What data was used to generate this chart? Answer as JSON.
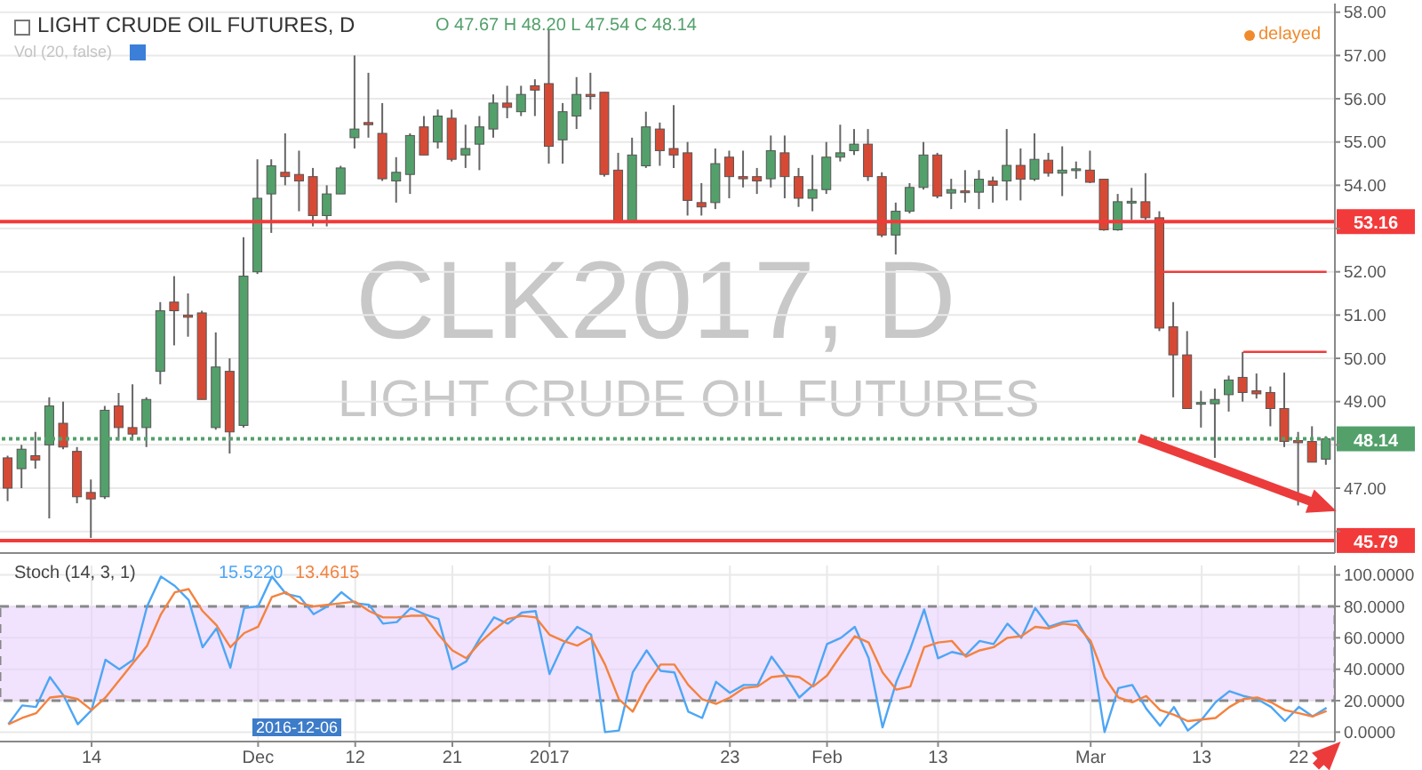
{
  "chart_data": [
    {
      "type": "candlestick",
      "title": "LIGHT CRUDE OIL FUTURES, D",
      "annotations": [
        "O 47.67 H 48.20 L 47.54 C 48.14",
        "Vol (20, false)",
        "delayed",
        "CLK2017, D",
        "LIGHT CRUDE OIL FUTURES"
      ],
      "categories": [
        null,
        null,
        null,
        null,
        null,
        null,
        null,
        null,
        null,
        null,
        null,
        null,
        null,
        null,
        null,
        null,
        null,
        null,
        null,
        null,
        null,
        null,
        null,
        null,
        null,
        null,
        null,
        null,
        null,
        null,
        null,
        null,
        null,
        null,
        null,
        null,
        null,
        null,
        null,
        null,
        null,
        null,
        null,
        null,
        null,
        null,
        null,
        null,
        null,
        null,
        null,
        null,
        null,
        null,
        null,
        null,
        null,
        null,
        null,
        null,
        null,
        null,
        null,
        null,
        null,
        null,
        null,
        null,
        null,
        null,
        null,
        null,
        null,
        null,
        null,
        null,
        null,
        null,
        null,
        null,
        null,
        null,
        null,
        null,
        null,
        null,
        null,
        null,
        null,
        null,
        null,
        null,
        null,
        null,
        null,
        null
      ],
      "ohlc": [
        [
          47.7,
          47.75,
          46.7,
          47.0
        ],
        [
          47.45,
          48.0,
          47.0,
          47.9
        ],
        [
          47.75,
          48.3,
          47.45,
          47.65
        ],
        [
          48.0,
          49.1,
          46.3,
          48.9
        ],
        [
          48.5,
          49.0,
          47.9,
          47.95
        ],
        [
          47.85,
          47.95,
          46.65,
          46.8
        ],
        [
          46.9,
          47.2,
          45.85,
          46.75
        ],
        [
          46.8,
          48.9,
          46.75,
          48.8
        ],
        [
          48.9,
          49.2,
          48.1,
          48.4
        ],
        [
          48.4,
          49.4,
          48.1,
          48.25
        ],
        [
          48.4,
          49.1,
          47.95,
          49.05
        ],
        [
          49.7,
          51.3,
          49.4,
          51.1
        ],
        [
          51.3,
          51.9,
          50.3,
          51.1
        ],
        [
          51.0,
          51.5,
          50.5,
          50.95
        ],
        [
          51.05,
          51.1,
          49.05,
          49.05
        ],
        [
          48.4,
          50.6,
          48.35,
          49.8
        ],
        [
          49.7,
          50.0,
          47.8,
          48.3
        ],
        [
          48.45,
          52.8,
          48.4,
          51.9
        ],
        [
          52.0,
          54.6,
          51.95,
          53.7
        ],
        [
          53.8,
          54.6,
          52.9,
          54.45
        ],
        [
          54.3,
          55.2,
          54.0,
          54.2
        ],
        [
          54.25,
          54.8,
          53.4,
          54.1
        ],
        [
          54.2,
          54.4,
          53.05,
          53.3
        ],
        [
          53.3,
          54.0,
          53.05,
          53.8
        ],
        [
          53.8,
          54.45,
          53.8,
          54.4
        ],
        [
          55.1,
          57.0,
          54.85,
          55.3
        ],
        [
          55.45,
          56.6,
          55.1,
          55.4
        ],
        [
          55.2,
          55.9,
          54.1,
          54.15
        ],
        [
          54.1,
          54.65,
          53.6,
          54.3
        ],
        [
          54.25,
          55.2,
          53.8,
          55.15
        ],
        [
          55.35,
          55.6,
          54.7,
          54.7
        ],
        [
          55.0,
          55.75,
          54.85,
          55.6
        ],
        [
          55.55,
          55.75,
          54.55,
          54.6
        ],
        [
          54.7,
          55.4,
          54.4,
          54.85
        ],
        [
          54.95,
          55.6,
          54.35,
          55.35
        ],
        [
          55.3,
          56.1,
          55.1,
          55.9
        ],
        [
          55.9,
          56.3,
          55.55,
          55.8
        ],
        [
          55.7,
          56.3,
          55.6,
          56.1
        ],
        [
          56.3,
          56.45,
          55.6,
          56.2
        ],
        [
          56.35,
          57.6,
          54.5,
          54.9
        ],
        [
          55.05,
          55.9,
          54.5,
          55.7
        ],
        [
          55.6,
          56.5,
          55.3,
          56.1
        ],
        [
          56.1,
          56.6,
          55.75,
          56.05
        ],
        [
          56.15,
          56.15,
          54.2,
          54.25
        ],
        [
          54.35,
          54.75,
          53.15,
          53.16
        ],
        [
          53.16,
          55.1,
          53.15,
          54.7
        ],
        [
          54.45,
          55.7,
          54.4,
          55.35
        ],
        [
          55.3,
          55.45,
          54.45,
          54.8
        ],
        [
          54.85,
          55.85,
          54.4,
          54.7
        ],
        [
          54.75,
          55.0,
          53.3,
          53.65
        ],
        [
          53.6,
          54.05,
          53.3,
          53.5
        ],
        [
          53.6,
          54.85,
          53.45,
          54.5
        ],
        [
          54.65,
          54.8,
          53.7,
          54.2
        ],
        [
          54.2,
          54.8,
          53.95,
          54.15
        ],
        [
          54.2,
          54.4,
          53.8,
          54.1
        ],
        [
          54.15,
          55.15,
          53.95,
          54.8
        ],
        [
          54.75,
          55.15,
          53.7,
          54.2
        ],
        [
          54.2,
          54.4,
          53.5,
          53.7
        ],
        [
          53.7,
          54.7,
          53.4,
          53.9
        ],
        [
          53.9,
          55.0,
          53.8,
          54.65
        ],
        [
          54.65,
          55.4,
          54.55,
          54.75
        ],
        [
          54.8,
          55.3,
          54.7,
          54.95
        ],
        [
          54.95,
          55.3,
          54.1,
          54.2
        ],
        [
          54.2,
          54.3,
          52.8,
          52.85
        ],
        [
          52.85,
          53.6,
          52.4,
          53.4
        ],
        [
          53.4,
          54.05,
          53.35,
          53.95
        ],
        [
          53.95,
          55.0,
          53.9,
          54.7
        ],
        [
          54.7,
          54.75,
          53.7,
          53.75
        ],
        [
          53.82,
          54.15,
          53.45,
          53.9
        ],
        [
          53.87,
          54.35,
          53.6,
          53.83
        ],
        [
          53.84,
          54.35,
          53.45,
          54.14
        ],
        [
          54.1,
          54.2,
          53.6,
          54.0
        ],
        [
          54.1,
          55.3,
          53.65,
          54.46
        ],
        [
          54.46,
          54.85,
          53.65,
          54.14
        ],
        [
          54.14,
          55.2,
          54.1,
          54.6
        ],
        [
          54.58,
          54.75,
          54.2,
          54.28
        ],
        [
          54.28,
          54.9,
          53.75,
          54.35
        ],
        [
          54.35,
          54.55,
          54.15,
          54.38
        ],
        [
          54.35,
          54.8,
          54.05,
          54.07
        ],
        [
          54.14,
          54.15,
          52.95,
          52.97
        ],
        [
          52.97,
          53.8,
          52.95,
          53.62
        ],
        [
          53.6,
          53.94,
          53.2,
          53.63
        ],
        [
          53.62,
          54.28,
          53.2,
          53.25
        ],
        [
          53.25,
          53.4,
          50.63,
          50.7
        ],
        [
          50.73,
          51.3,
          49.1,
          50.08
        ],
        [
          50.08,
          50.63,
          48.84,
          48.84
        ],
        [
          48.95,
          49.25,
          48.4,
          48.98
        ],
        [
          48.95,
          49.3,
          47.7,
          49.05
        ],
        [
          49.16,
          49.6,
          48.77,
          49.5
        ],
        [
          49.56,
          50.15,
          49.0,
          49.21
        ],
        [
          49.25,
          49.65,
          49.07,
          49.18
        ],
        [
          49.21,
          49.35,
          48.43,
          48.84
        ],
        [
          48.84,
          49.67,
          47.95,
          48.08
        ],
        [
          48.1,
          48.3,
          46.6,
          48.05
        ],
        [
          48.08,
          48.43,
          47.6,
          47.6
        ],
        [
          47.67,
          48.2,
          47.54,
          48.14
        ]
      ],
      "colors": [
        "#d64a35",
        "#53a06b",
        "#d64a35",
        "#53a06b",
        "#d64a35",
        "#d64a35",
        "#d64a35",
        "#53a06b",
        "#d64a35",
        "#d64a35",
        "#53a06b",
        "#53a06b",
        "#d64a35",
        "#d64a35",
        "#d64a35",
        "#53a06b",
        "#d64a35",
        "#53a06b",
        "#53a06b",
        "#53a06b",
        "#d64a35",
        "#d64a35",
        "#d64a35",
        "#53a06b",
        "#53a06b",
        "#53a06b",
        "#d64a35",
        "#d64a35",
        "#53a06b",
        "#53a06b",
        "#d64a35",
        "#53a06b",
        "#d64a35",
        "#53a06b",
        "#53a06b",
        "#53a06b",
        "#d64a35",
        "#53a06b",
        "#d64a35",
        "#d64a35",
        "#53a06b",
        "#53a06b",
        "#d64a35",
        "#d64a35",
        "#d64a35",
        "#53a06b",
        "#53a06b",
        "#d64a35",
        "#d64a35",
        "#d64a35",
        "#d64a35",
        "#53a06b",
        "#d64a35",
        "#d64a35",
        "#d64a35",
        "#53a06b",
        "#d64a35",
        "#d64a35",
        "#53a06b",
        "#53a06b",
        "#53a06b",
        "#53a06b",
        "#d64a35",
        "#d64a35",
        "#53a06b",
        "#53a06b",
        "#53a06b",
        "#d64a35",
        "#53a06b",
        "#d64a35",
        "#53a06b",
        "#d64a35",
        "#53a06b",
        "#d64a35",
        "#53a06b",
        "#d64a35",
        "#53a06b",
        "#53a06b",
        "#d64a35",
        "#d64a35",
        "#53a06b",
        "#53a06b",
        "#d64a35",
        "#d64a35",
        "#d64a35",
        "#d64a35",
        "#53a06b",
        "#53a06b",
        "#53a06b",
        "#d64a35",
        "#d64a35",
        "#d64a35",
        "#d64a35",
        "#d64a35",
        "#d64a35",
        "#53a06b"
      ],
      "series": [
        {
          "type": "line",
          "color": "#f23a3a",
          "values": [
            null,
            null,
            null,
            null,
            null,
            null,
            null,
            null,
            null,
            null,
            null,
            null,
            null,
            null,
            null,
            null,
            null,
            null,
            null,
            null,
            null,
            null,
            null,
            null,
            null,
            null,
            null,
            null,
            null,
            null,
            null,
            null,
            null,
            null,
            null,
            null,
            null,
            null,
            null,
            null,
            null,
            null,
            null,
            null,
            null,
            null,
            null,
            null,
            null,
            null,
            null,
            null,
            null,
            null,
            null,
            null,
            null,
            null,
            null,
            null,
            null,
            null,
            null,
            null,
            null,
            null,
            null,
            null,
            null,
            null,
            null,
            null,
            null,
            null,
            null,
            null,
            null,
            null,
            null,
            null,
            null,
            null,
            null,
            52,
            52,
            52,
            52,
            52,
            52,
            52,
            52,
            52,
            52,
            52,
            52,
            52
          ]
        },
        {
          "type": "line",
          "color": "#f23a3a",
          "values": [
            null,
            null,
            null,
            null,
            null,
            null,
            null,
            null,
            null,
            null,
            null,
            null,
            null,
            null,
            null,
            null,
            null,
            null,
            null,
            null,
            null,
            null,
            null,
            null,
            null,
            null,
            null,
            null,
            null,
            null,
            null,
            null,
            null,
            null,
            null,
            null,
            null,
            null,
            null,
            null,
            null,
            null,
            null,
            null,
            null,
            null,
            null,
            null,
            null,
            null,
            null,
            null,
            null,
            null,
            null,
            null,
            null,
            null,
            null,
            null,
            null,
            null,
            null,
            null,
            null,
            null,
            null,
            null,
            null,
            null,
            null,
            null,
            null,
            null,
            null,
            null,
            null,
            null,
            null,
            null,
            null,
            null,
            null,
            null,
            null,
            null,
            null,
            null,
            null,
            50.15,
            50.15,
            50.15,
            50.15,
            50.15,
            50.15,
            50.15
          ]
        }
      ],
      "ylim": [
        45.5,
        58.2
      ],
      "yticks": [
        {
          "value": 46,
          "label": null
        },
        {
          "value": 47,
          "label": "47.00"
        },
        {
          "value": 48,
          "label": null
        },
        {
          "value": 49,
          "label": "49.00"
        },
        {
          "value": 50,
          "label": "50.00"
        },
        {
          "value": 51,
          "label": "51.00"
        },
        {
          "value": 52,
          "label": "52.00"
        },
        {
          "value": 53,
          "label": null
        },
        {
          "value": 54,
          "label": "54.00"
        },
        {
          "value": 55,
          "label": "55.00"
        },
        {
          "value": 56,
          "label": "56.00"
        },
        {
          "value": 57,
          "label": "57.00"
        },
        {
          "value": 58,
          "label": "58.00"
        }
      ],
      "ref_lines": [
        {
          "axis": "y",
          "value": 53.16,
          "label": "53.16",
          "color": "#f23a3a",
          "line_style": "solid"
        },
        {
          "axis": "y",
          "value": 45.79,
          "label": "45.79",
          "color": "#f23a3a",
          "line_style": "solid"
        },
        {
          "axis": "y",
          "value": 48.14,
          "label": "48.14",
          "color": "#53a06b",
          "line_style": "dotted"
        }
      ],
      "grid": true,
      "legend": false,
      "tick_labels": "y"
    },
    {
      "type": "line",
      "title": "Stoch (14, 3, 1)",
      "annotations": [
        "15.5220",
        "13.4615",
        "2016-12-06"
      ],
      "categories": [
        null,
        null,
        null,
        null,
        null,
        null,
        "14",
        null,
        null,
        null,
        null,
        null,
        null,
        null,
        null,
        null,
        null,
        null,
        "Dec",
        null,
        null,
        null,
        null,
        null,
        null,
        "12",
        null,
        null,
        null,
        null,
        null,
        null,
        "21",
        null,
        null,
        null,
        null,
        null,
        null,
        "2017",
        null,
        null,
        null,
        null,
        null,
        null,
        null,
        null,
        null,
        null,
        null,
        null,
        "23",
        null,
        null,
        null,
        null,
        null,
        null,
        "Feb",
        null,
        null,
        null,
        null,
        null,
        null,
        null,
        "13",
        null,
        null,
        null,
        null,
        null,
        null,
        null,
        null,
        null,
        null,
        "Mar",
        null,
        null,
        null,
        null,
        null,
        null,
        null,
        "13",
        null,
        null,
        null,
        null,
        null,
        null,
        "22",
        null,
        null
      ],
      "series": [
        {
          "color": "#4da6f5",
          "values": [
            5,
            17,
            16,
            35,
            23,
            5,
            14,
            46,
            40,
            46,
            80,
            99,
            93,
            84,
            54,
            66,
            41,
            79,
            80,
            99,
            88,
            86,
            75,
            80,
            89,
            82,
            81,
            69,
            70,
            79,
            75,
            72,
            40,
            45,
            60,
            73,
            69,
            76,
            77,
            37,
            56,
            67,
            62,
            0,
            1,
            38,
            52,
            39,
            38,
            13,
            9,
            32,
            25,
            30,
            30,
            48,
            36,
            22,
            30,
            56,
            60,
            67,
            47,
            3,
            32,
            53,
            78,
            47,
            51,
            49,
            58,
            56,
            69,
            60,
            79,
            67,
            70,
            71,
            56,
            0,
            28,
            30,
            15,
            4,
            16,
            1,
            8,
            19,
            26,
            23,
            21,
            16,
            7,
            16,
            10,
            15.5
          ]
        },
        {
          "color": "#f4823f",
          "values": [
            5,
            9,
            12,
            22,
            23,
            21,
            14,
            22,
            33,
            44,
            55,
            75,
            89,
            91,
            77,
            68,
            54,
            63,
            67,
            86,
            89,
            82,
            80,
            81,
            82,
            83,
            77,
            73,
            73,
            74,
            74,
            62,
            52,
            47,
            57,
            65,
            72,
            74,
            73,
            62,
            58,
            55,
            60,
            43,
            21,
            13,
            30,
            43,
            43,
            30,
            21,
            18,
            22,
            28,
            29,
            35,
            36,
            35,
            29,
            36,
            49,
            61,
            57,
            38,
            27,
            29,
            54,
            57,
            58,
            48,
            52,
            54,
            60,
            61,
            67,
            66,
            69,
            68,
            58,
            35,
            22,
            19,
            23,
            14,
            11,
            7,
            8,
            9,
            16,
            21,
            22,
            19,
            14,
            12,
            10,
            13.5
          ]
        }
      ],
      "ylim": [
        -6,
        106
      ],
      "yticks": [
        {
          "value": 0,
          "label": "0.0000"
        },
        {
          "value": 20,
          "label": "20.0000"
        },
        {
          "value": 40,
          "label": "40.0000"
        },
        {
          "value": 60,
          "label": "60.0000"
        },
        {
          "value": 80,
          "label": "80.0000"
        },
        {
          "value": 100,
          "label": "100.0000"
        }
      ],
      "bands": [
        {
          "axis": "y",
          "from": 20,
          "to": 80,
          "color": "#e8cffb"
        }
      ],
      "grid": true,
      "legend": false,
      "marker": "none"
    }
  ]
}
